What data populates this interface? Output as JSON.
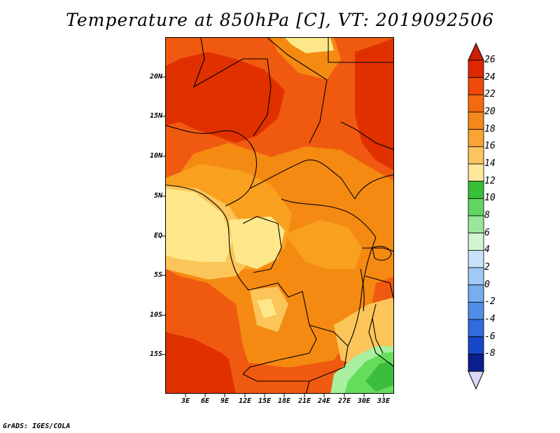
{
  "title": "Temperature at 850hPa [C], VT: 2019092506",
  "credit": "GrADS: IGES/COLA",
  "map": {
    "y_ticks": [
      "20N",
      "15N",
      "10N",
      "5N",
      "EQ",
      "5S",
      "10S",
      "15S"
    ],
    "x_ticks": [
      "3E",
      "6E",
      "9E",
      "12E",
      "15E",
      "18E",
      "21E",
      "24E",
      "27E",
      "30E",
      "33E"
    ],
    "lat_range": [
      -20,
      24.5
    ],
    "lon_range": [
      0,
      34.5
    ],
    "field_colors": {
      "t24": "#e03000",
      "t22": "#f05a10",
      "t20": "#f58a12",
      "t18": "#f9a11e",
      "t16": "#fbc55a",
      "t14": "#fde78a",
      "t12": "#a8f0a0",
      "t10": "#66dc5c",
      "t8": "#3cbe3c"
    }
  },
  "colorbar": {
    "labels": [
      "26",
      "24",
      "22",
      "20",
      "18",
      "16",
      "14",
      "12",
      "10",
      "8",
      "6",
      "4",
      "2",
      "0",
      "-2",
      "-4",
      "-6",
      "-8"
    ],
    "colors": [
      "#dd2800",
      "#ee4a0a",
      "#f36a0e",
      "#f6891a",
      "#f9a434",
      "#fbc462",
      "#fde89a",
      "#38c038",
      "#62d462",
      "#9ae69a",
      "#d2f6d2",
      "#c8e2fa",
      "#9ecaf4",
      "#76aeee",
      "#4e8ee6",
      "#2f6ddc",
      "#1848c8",
      "#0a1e8c"
    ],
    "top_arrow_color": "#cc1e00",
    "bottom_arrow_color": "#d8d8f8"
  }
}
